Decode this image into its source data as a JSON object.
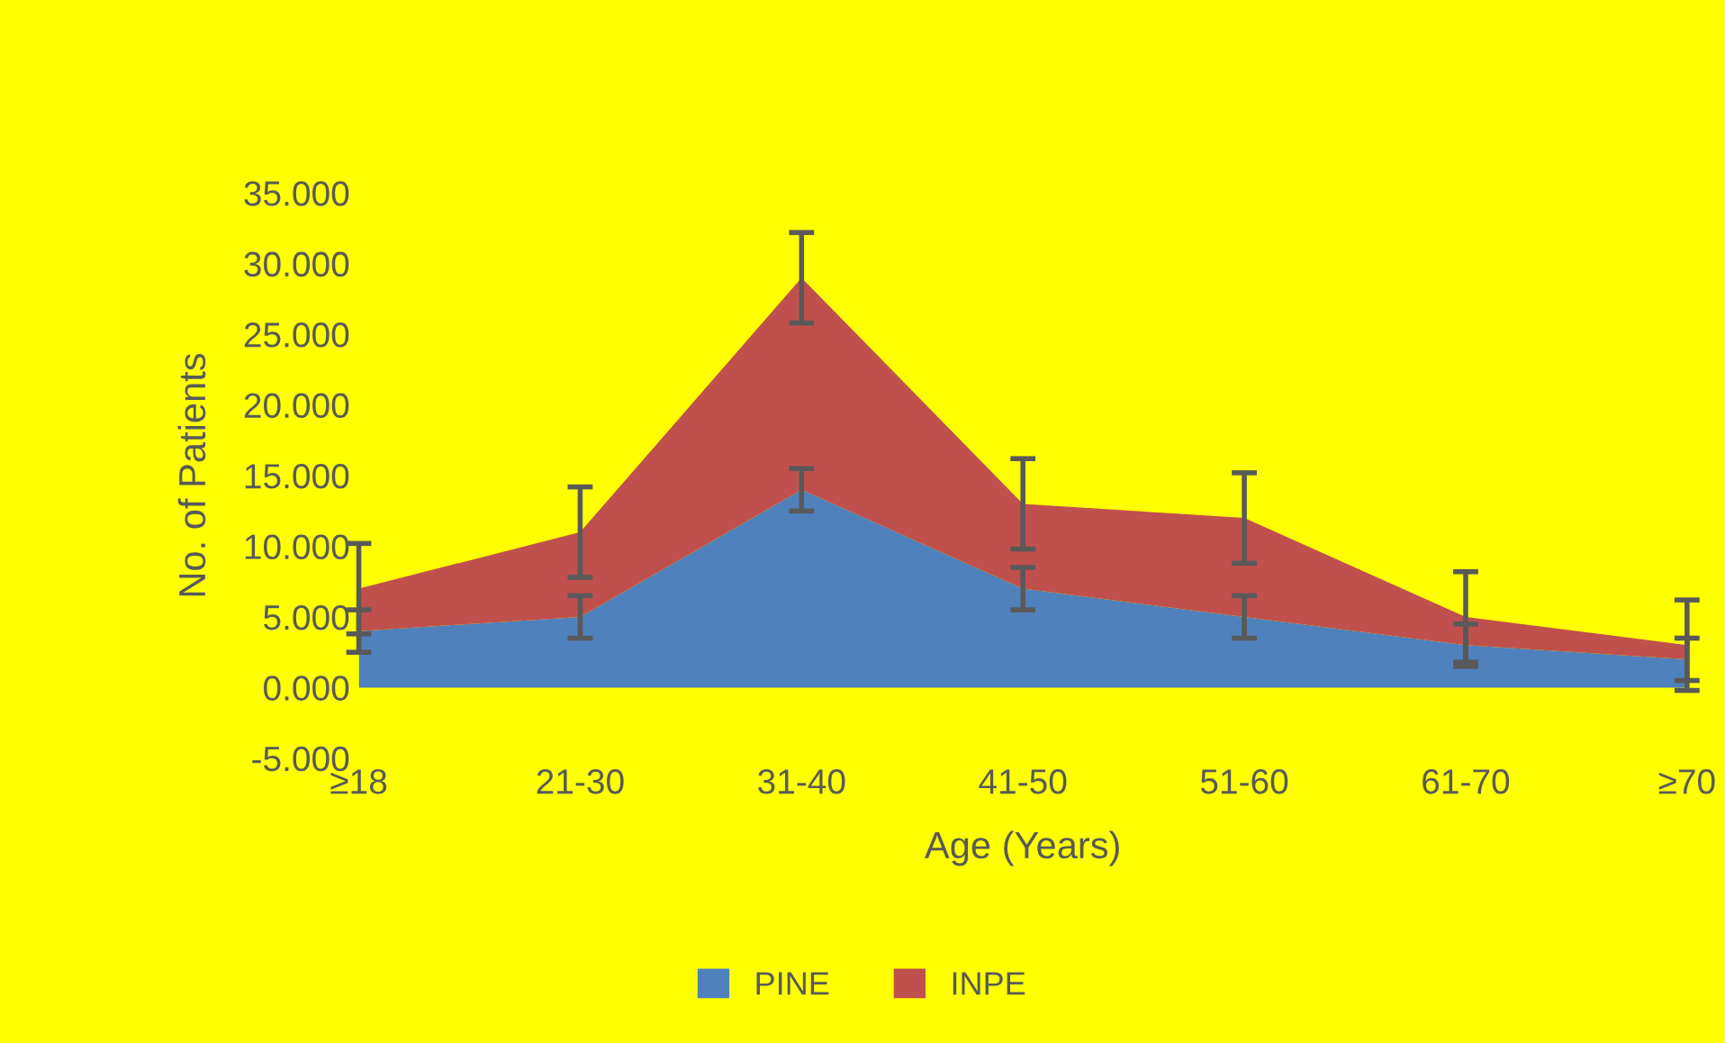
{
  "chart_data": {
    "type": "area",
    "stacked": true,
    "xlabel": "Age (Years)",
    "ylabel": "No. of Patients",
    "categories": [
      "≥18",
      "21-30",
      "31-40",
      "41-50",
      "51-60",
      "61-70",
      "≥70"
    ],
    "series": [
      {
        "name": "PINE",
        "color": "#4f81bd",
        "values": [
          4,
          5,
          14,
          7,
          5,
          3,
          2
        ],
        "errors": [
          1.5,
          1.5,
          1.5,
          1.5,
          1.5,
          1.5,
          1.5
        ]
      },
      {
        "name": "INPE",
        "color": "#c0504d",
        "values": [
          3,
          6,
          15,
          6,
          7,
          2,
          1
        ],
        "errors": [
          3.2,
          3.2,
          3.2,
          3.2,
          3.2,
          3.2,
          3.2
        ]
      }
    ],
    "ylim": [
      -5,
      35
    ],
    "yticks": [
      {
        "value": -5,
        "label": "-5.000"
      },
      {
        "value": 0,
        "label": "0.000"
      },
      {
        "value": 5,
        "label": "5.000"
      },
      {
        "value": 10,
        "label": "10.000"
      },
      {
        "value": 15,
        "label": "15.000"
      },
      {
        "value": 20,
        "label": "20.000"
      },
      {
        "value": 25,
        "label": "25.000"
      },
      {
        "value": 30,
        "label": "30.000"
      },
      {
        "value": 35,
        "label": "35.000"
      }
    ],
    "grid": false,
    "legend": "bottom"
  }
}
